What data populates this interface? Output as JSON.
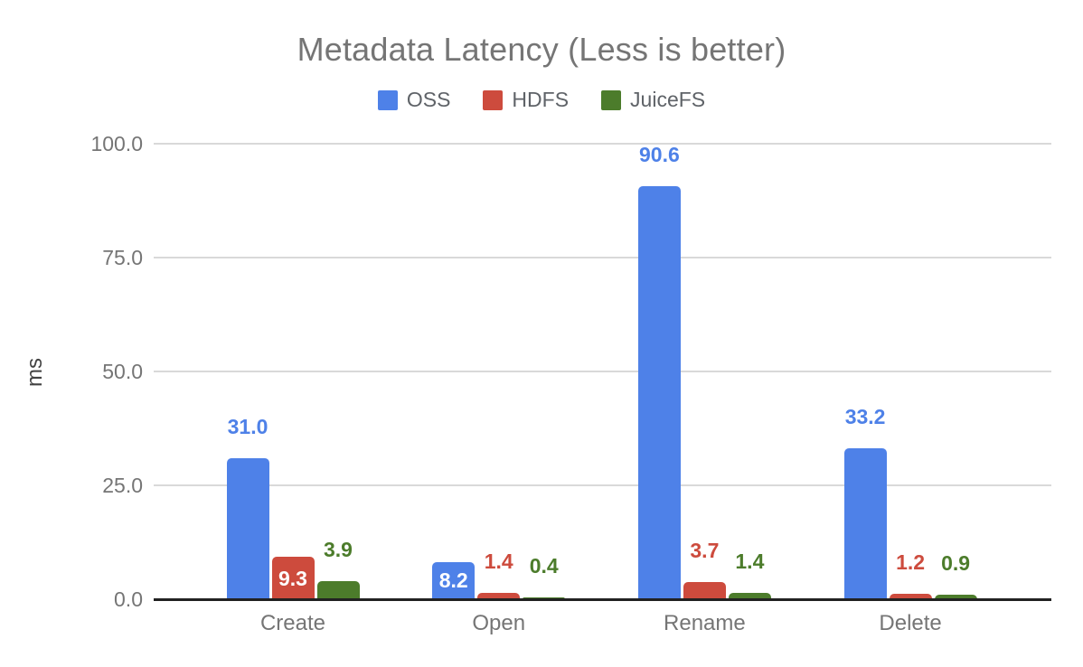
{
  "chart_data": {
    "type": "bar",
    "title": "Metadata Latency (Less is better)",
    "categories": [
      "Create",
      "Open",
      "Rename",
      "Delete"
    ],
    "series": [
      {
        "name": "OSS",
        "color": "#4e81e8",
        "values": [
          31.0,
          8.2,
          90.6,
          33.2
        ],
        "value_labels": [
          "31.0",
          "8.2",
          "90.6",
          "33.2"
        ],
        "label_placement": [
          "above",
          "inside",
          "above",
          "above"
        ]
      },
      {
        "name": "HDFS",
        "color": "#cd4b3d",
        "values": [
          9.3,
          1.4,
          3.7,
          1.2
        ],
        "value_labels": [
          "9.3",
          "1.4",
          "3.7",
          "1.2"
        ],
        "label_placement": [
          "inside",
          "above",
          "above",
          "above"
        ]
      },
      {
        "name": "JuiceFS",
        "color": "#4c7c2b",
        "values": [
          3.9,
          0.4,
          1.4,
          0.9
        ],
        "value_labels": [
          "3.9",
          "0.4",
          "1.4",
          "0.9"
        ],
        "label_placement": [
          "above",
          "above",
          "above",
          "above"
        ]
      }
    ],
    "xlabel": "",
    "ylabel": "ms",
    "ylim": [
      0,
      100
    ],
    "yticks": [
      0.0,
      25.0,
      50.0,
      75.0,
      100.0
    ],
    "ytick_labels": [
      "0.0",
      "25.0",
      "50.0",
      "75.0",
      "100.0"
    ],
    "grid": true,
    "legend_position": "top"
  },
  "colors": {
    "title_text": "#757575",
    "axis_text": "#757575",
    "legend_text": "#5f6368",
    "gridline": "#d9d9d9",
    "baseline": "#212121",
    "background": "#ffffff"
  }
}
